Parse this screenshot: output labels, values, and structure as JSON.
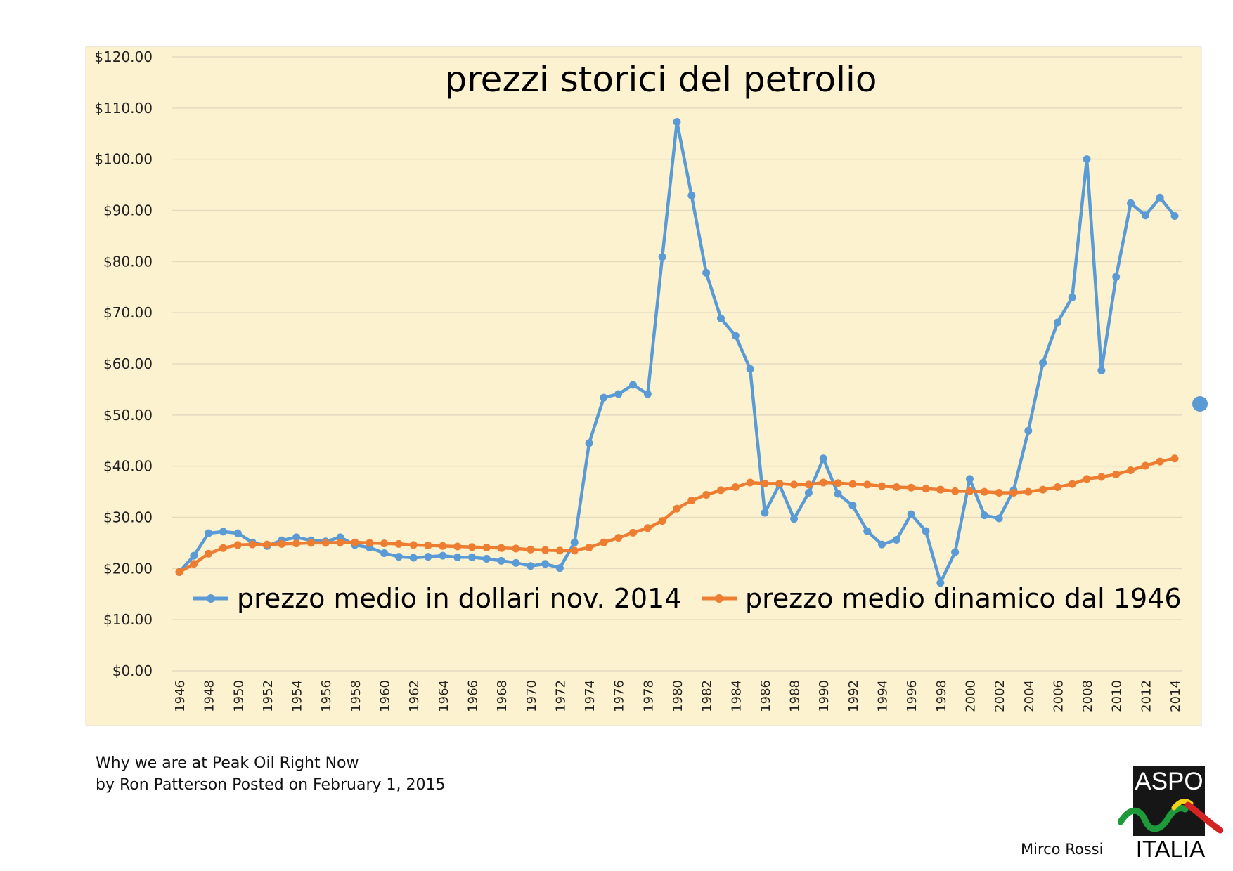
{
  "chart_data": {
    "type": "line",
    "title": "prezzi storici del petrolio",
    "xlabel": "",
    "ylabel": "",
    "ylim": [
      0,
      120
    ],
    "y_ticks": [
      "$0.00",
      "$10.00",
      "$20.00",
      "$30.00",
      "$40.00",
      "$50.00",
      "$60.00",
      "$70.00",
      "$80.00",
      "$90.00",
      "$100.00",
      "$110.00",
      "$120.00"
    ],
    "x_ticks": [
      "1946",
      "1948",
      "1950",
      "1952",
      "1954",
      "1956",
      "1958",
      "1960",
      "1962",
      "1964",
      "1966",
      "1968",
      "1970",
      "1972",
      "1974",
      "1976",
      "1978",
      "1980",
      "1982",
      "1984",
      "1986",
      "1988",
      "1990",
      "1992",
      "1994",
      "1996",
      "1998",
      "2000",
      "2002",
      "2004",
      "2006",
      "2008",
      "2010",
      "2012",
      "2014"
    ],
    "grid": true,
    "legend_position": "inside-bottom",
    "x": [
      1946,
      1947,
      1948,
      1949,
      1950,
      1951,
      1952,
      1953,
      1954,
      1955,
      1956,
      1957,
      1958,
      1959,
      1960,
      1961,
      1962,
      1963,
      1964,
      1965,
      1966,
      1967,
      1968,
      1969,
      1970,
      1971,
      1972,
      1973,
      1974,
      1975,
      1976,
      1977,
      1978,
      1979,
      1980,
      1981,
      1982,
      1983,
      1984,
      1985,
      1986,
      1987,
      1988,
      1989,
      1990,
      1991,
      1992,
      1993,
      1994,
      1995,
      1996,
      1997,
      1998,
      1999,
      2000,
      2001,
      2002,
      2003,
      2004,
      2005,
      2006,
      2007,
      2008,
      2009,
      2010,
      2011,
      2012,
      2013,
      2014
    ],
    "series": [
      {
        "name": "prezzo medio in dollari nov. 2014",
        "color": "#5b9bd5",
        "values": [
          19.3,
          22.5,
          26.9,
          27.2,
          26.9,
          25.1,
          24.4,
          25.5,
          26.1,
          25.5,
          25.3,
          26.1,
          24.6,
          24.1,
          23.0,
          22.3,
          22.1,
          22.3,
          22.5,
          22.2,
          22.2,
          21.9,
          21.5,
          21.1,
          20.5,
          20.9,
          20.1,
          25.1,
          44.5,
          53.4,
          54.1,
          55.9,
          54.1,
          80.9,
          107.3,
          92.9,
          77.8,
          68.9,
          65.5,
          59.0,
          30.9,
          36.4,
          29.7,
          34.8,
          41.5,
          34.6,
          32.3,
          27.3,
          24.7,
          25.6,
          30.6,
          27.3,
          17.2,
          23.2,
          37.5,
          30.4,
          29.8,
          35.3,
          46.9,
          60.2,
          68.1,
          73.0,
          100.0,
          58.7,
          77.0,
          91.4,
          89.0,
          92.5,
          88.9
        ]
      },
      {
        "name": "prezzo medio dinamico dal 1946",
        "color": "#ed7d31",
        "values": [
          19.3,
          20.9,
          22.9,
          24.0,
          24.6,
          24.7,
          24.7,
          24.8,
          24.9,
          25.0,
          25.0,
          25.1,
          25.1,
          25.0,
          24.9,
          24.8,
          24.6,
          24.5,
          24.4,
          24.3,
          24.2,
          24.1,
          24.0,
          23.9,
          23.7,
          23.6,
          23.5,
          23.5,
          24.1,
          25.1,
          26.0,
          27.0,
          27.9,
          29.3,
          31.7,
          33.3,
          34.4,
          35.3,
          35.9,
          36.8,
          36.6,
          36.6,
          36.4,
          36.4,
          36.8,
          36.7,
          36.5,
          36.4,
          36.1,
          35.9,
          35.8,
          35.6,
          35.4,
          35.1,
          35.1,
          35.0,
          34.8,
          34.8,
          35.0,
          35.4,
          35.9,
          36.5,
          37.5,
          37.9,
          38.4,
          39.2,
          40.1,
          40.9,
          41.5
        ]
      }
    ]
  },
  "caption": {
    "line1": "Why we are at Peak Oil Right Now",
    "line2": "by Ron Patterson Posted on February 1, 2015"
  },
  "author": "Mirco Rossi",
  "logo": {
    "top_text": "ASPO",
    "bottom_text": "ITALIA"
  },
  "colors": {
    "plot_background": "#fdf2cf",
    "gridline": "#e4dac0"
  }
}
